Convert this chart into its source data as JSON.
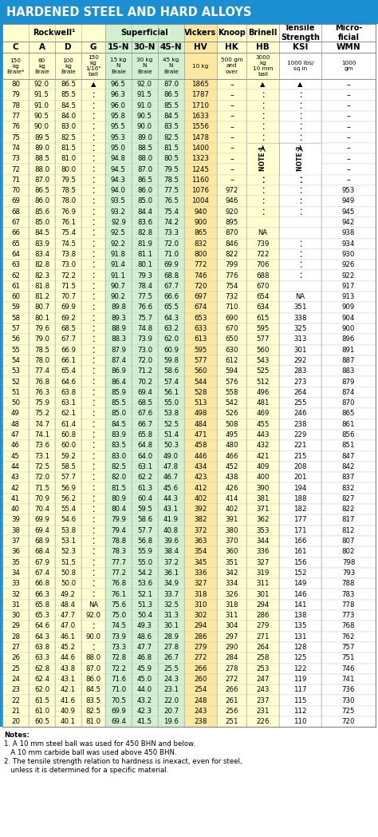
{
  "title": "HARDENED STEEL AND HARD ALLOYS",
  "header2": [
    "C",
    "A",
    "D",
    "G",
    "15-N",
    "30-N",
    "45-N",
    "HV",
    "HK",
    "HB",
    "KSI",
    "WMN"
  ],
  "subheader": [
    "150\nkg\nBrale*",
    "60\nkg\nBrale",
    "100\nkg\nBrale",
    "150\nkg\n1/16\"\nball",
    "15 kg\nN\nBrale",
    "30 kg\nN\nBrale",
    "45 kg\nN\nBrale",
    "10 kg",
    "500 gm\nand\nover",
    "3000\nkg\n10 mm\nball",
    "1000 lbs/\nsq in",
    "1000\ngm"
  ],
  "col_bg": [
    "#ffffd0",
    "#ffffd0",
    "#ffffd0",
    "#ffffd0",
    "#d0f0d0",
    "#d0f0d0",
    "#d0f0d0",
    "#fde8a0",
    "#ffffd0",
    "#ffffd0",
    "#ffffff",
    "#ffffff"
  ],
  "rows": [
    [
      "80",
      "92.0",
      "86.5",
      "A",
      "96.5",
      "92.0",
      "87.0",
      "1865",
      "-",
      "A",
      "A",
      "-"
    ],
    [
      "79",
      "91.5",
      "85.5",
      ":",
      "96.3",
      "91.5",
      "86.5",
      "1787",
      "-",
      ":",
      ":",
      "–"
    ],
    [
      "78",
      "91.0",
      "84.5",
      ":",
      "96.0",
      "91.0",
      "85.5",
      "1710",
      "-",
      ":",
      ":",
      "–"
    ],
    [
      "77",
      "90.5",
      "84.0",
      ":",
      "95.8",
      "90.5",
      "84.5",
      "1633",
      "-",
      ":",
      ":",
      "–"
    ],
    [
      "76",
      "90.0",
      "83.0",
      ":",
      "95.5",
      "90.0",
      "83.5",
      "1556",
      "-",
      ":",
      ":",
      "–"
    ],
    [
      "75",
      "89.5",
      "82.5",
      ":",
      "95.3",
      "89.0",
      "82.5",
      "1478",
      "-",
      ":",
      ":",
      "–"
    ],
    [
      "74",
      "89.0",
      "81.5",
      ":",
      "95.0",
      "88.5",
      "81.5",
      "1400",
      "-",
      "NOTE1",
      "NOTE2",
      "–"
    ],
    [
      "73",
      "88.5",
      "81.0",
      ":",
      "94.8",
      "88.0",
      "80.5",
      "1323",
      "-",
      "NOTE1",
      "NOTE2",
      "–"
    ],
    [
      "72",
      "88.0",
      "80.0",
      ":",
      "94.5",
      "87.0",
      "79.5",
      "1245",
      "-",
      "NOTE1",
      "NOTE2",
      "–"
    ],
    [
      "71",
      "87.0",
      "79.5",
      ":",
      "94.3",
      "86.5",
      "78.5",
      "1160",
      "-",
      ":",
      ":",
      "–"
    ],
    [
      "70",
      "86.5",
      "78.5",
      ":",
      "94.0",
      "86.0",
      "77.5",
      "1076",
      "972",
      ":",
      ":",
      "953"
    ],
    [
      "69",
      "86.0",
      "78.0",
      ":",
      "93.5",
      "85.0",
      "76.5",
      "1004",
      "946",
      ":",
      ":",
      "949"
    ],
    [
      "68",
      "85.6",
      "76.9",
      ":",
      "93.2",
      "84.4",
      "75.4",
      "940",
      "920",
      ":",
      ":",
      "945"
    ],
    [
      "67",
      "85.0",
      "76.1",
      ":",
      "92.9",
      "83.6",
      "74.2",
      "900",
      "895",
      "",
      "",
      "942"
    ],
    [
      "66",
      "84.5",
      "75.4",
      ":",
      "92.5",
      "82.8",
      "73.3",
      "865",
      "870",
      "NA",
      "",
      "938"
    ],
    [
      "65",
      "83.9",
      "74.5",
      ":",
      "92.2",
      "81.9",
      "72.0",
      "832",
      "846",
      "739",
      ":",
      "934"
    ],
    [
      "64",
      "83.4",
      "73.8",
      ":",
      "91.8",
      "81.1",
      "71.0",
      "800",
      "822",
      "722",
      ":",
      "930"
    ],
    [
      "63",
      "82.8",
      "73.0",
      ":",
      "91.4",
      "80.1",
      "69.9",
      "772",
      "799",
      "706",
      ":",
      "926"
    ],
    [
      "62",
      "82.3",
      "72.2",
      ":",
      "91.1",
      "79.3",
      "68.8",
      "746",
      "776",
      "688",
      ":",
      "922"
    ],
    [
      "61",
      "81.8",
      "71.5",
      ":",
      "90.7",
      "78.4",
      "67.7",
      "720",
      "754",
      "670",
      "",
      "917"
    ],
    [
      "60",
      "81.2",
      "70.7",
      ":",
      "90.2",
      "77.5",
      "66.6",
      "697",
      "732",
      "654",
      "NA",
      "913"
    ],
    [
      "59",
      "80.7",
      "69.9",
      ":",
      "89.8",
      "76.6",
      "65.5",
      "674",
      "710",
      "634",
      "351",
      "909"
    ],
    [
      "58",
      "80.1",
      "69.2",
      ":",
      "89.3",
      "75.7",
      "64.3",
      "653",
      "690",
      "615",
      "338",
      "904"
    ],
    [
      "57",
      "79.6",
      "68.5",
      ":",
      "88.9",
      "74.8",
      "63.2",
      "633",
      "670",
      "595",
      "325",
      "900"
    ],
    [
      "56",
      "79.0",
      "67.7",
      ":",
      "88.3",
      "73.9",
      "62.0",
      "613",
      "650",
      "577",
      "313",
      "896"
    ],
    [
      "55",
      "78.5",
      "66.9",
      ":",
      "87.9",
      "73.0",
      "60.9",
      "595",
      "630",
      "560",
      "301",
      "891"
    ],
    [
      "54",
      "78.0",
      "66.1",
      ":",
      "87.4",
      "72.0",
      "59.8",
      "577",
      "612",
      "543",
      "292",
      "887"
    ],
    [
      "53",
      "77.4",
      "65.4",
      ":",
      "86.9",
      "71.2",
      "58.6",
      "560",
      "594",
      "525",
      "283",
      "883"
    ],
    [
      "52",
      "76.8",
      "64.6",
      ":",
      "86.4",
      "70.2",
      "57.4",
      "544",
      "576",
      "512",
      "273",
      "879"
    ],
    [
      "51",
      "76.3",
      "63.8",
      ":",
      "85.9",
      "69.4",
      "56.1",
      "528",
      "558",
      "496",
      "264",
      "874"
    ],
    [
      "50",
      "75.9",
      "63.1",
      ":",
      "85.5",
      "68.5",
      "55.0",
      "513",
      "542",
      "481",
      "255",
      "870"
    ],
    [
      "49",
      "75.2",
      "62.1",
      ":",
      "85.0",
      "67.6",
      "53.8",
      "498",
      "526",
      "469",
      "246",
      "865"
    ],
    [
      "48",
      "74.7",
      "61.4",
      ":",
      "84.5",
      "66.7",
      "52.5",
      "484",
      "508",
      "455",
      "238",
      "861"
    ],
    [
      "47",
      "74.1",
      "60.8",
      ":",
      "83.9",
      "65.8",
      "51.4",
      "471",
      "495",
      "443",
      "229",
      "856"
    ],
    [
      "46",
      "73.6",
      "60.0",
      ":",
      "83.5",
      "64.8",
      "50.3",
      "458",
      "480",
      "432",
      "221",
      "851"
    ],
    [
      "45",
      "73.1",
      "59.2",
      ":",
      "83.0",
      "64.0",
      "49.0",
      "446",
      "466",
      "421",
      "215",
      "847"
    ],
    [
      "44",
      "72.5",
      "58.5",
      ":",
      "82.5",
      "63.1",
      "47.8",
      "434",
      "452",
      "409",
      "208",
      "842"
    ],
    [
      "43",
      "72.0",
      "57.7",
      ":",
      "82.0",
      "62.2",
      "46.7",
      "423",
      "438",
      "400",
      "201",
      "837"
    ],
    [
      "42",
      "71.5",
      "56.9",
      ":",
      "81.5",
      "61.3",
      "45.6",
      "412",
      "426",
      "390",
      "194",
      "832"
    ],
    [
      "41",
      "70.9",
      "56.2",
      ":",
      "80.9",
      "60.4",
      "44.3",
      "402",
      "414",
      "381",
      "188",
      "827"
    ],
    [
      "40",
      "70.4",
      "55.4",
      ":",
      "80.4",
      "59.5",
      "43.1",
      "392",
      "402",
      "371",
      "182",
      "822"
    ],
    [
      "39",
      "69.9",
      "54.6",
      ":",
      "79.9",
      "58.6",
      "41.9",
      "382",
      "391",
      "362",
      "177",
      "817"
    ],
    [
      "38",
      "69.4",
      "53.8",
      ":",
      "79.4",
      "57.7",
      "40.8",
      "372",
      "380",
      "353",
      "171",
      "812"
    ],
    [
      "37",
      "68.9",
      "53.1",
      ":",
      "78.8",
      "56.8",
      "39.6",
      "363",
      "370",
      "344",
      "166",
      "807"
    ],
    [
      "36",
      "68.4",
      "52.3",
      ":",
      "78.3",
      "55.9",
      "38.4",
      "354",
      "360",
      "336",
      "161",
      "802"
    ],
    [
      "35",
      "67.9",
      "51.5",
      ":",
      "77.7",
      "55.0",
      "37.2",
      "345",
      "351",
      "327",
      "156",
      "798"
    ],
    [
      "34",
      "67.4",
      "50.8",
      ":",
      "77.2",
      "54.2",
      "36.1",
      "336",
      "342",
      "319",
      "152",
      "793"
    ],
    [
      "33",
      "66.8",
      "50.0",
      ":",
      "76.8",
      "53.6",
      "34.9",
      "327",
      "334",
      "311",
      "149",
      "788"
    ],
    [
      "32",
      "66.3",
      "49.2",
      ":",
      "76.1",
      "52.1",
      "33.7",
      "318",
      "326",
      "301",
      "146",
      "783"
    ],
    [
      "31",
      "65.8",
      "48.4",
      "NA",
      "75.6",
      "51.3",
      "32.5",
      "310",
      "318",
      "294",
      "141",
      "778"
    ],
    [
      "30",
      "65.3",
      "47.7",
      "92.0",
      "75.0",
      "50.4",
      "31.3",
      "302",
      "311",
      "286",
      "138",
      "773"
    ],
    [
      "29",
      "64.6",
      "47.0",
      ":",
      "74.5",
      "49.3",
      "30.1",
      "294",
      "304",
      "279",
      "135",
      "768"
    ],
    [
      "28",
      "64.3",
      "46.1",
      "90.0",
      "73.9",
      "48.6",
      "28.9",
      "286",
      "297",
      "271",
      "131",
      "762"
    ],
    [
      "27",
      "63.8",
      "45.2",
      ":",
      "73.3",
      "47.7",
      "27.8",
      "279",
      "290",
      "264",
      "128",
      "757"
    ],
    [
      "26",
      "63.3",
      "44.6",
      "88.0",
      "72.8",
      "46.8",
      "26.7",
      "272",
      "284",
      "258",
      "125",
      "751"
    ],
    [
      "25",
      "62.8",
      "43.8",
      "87.0",
      "72.2",
      "45.9",
      "25.5",
      "266",
      "278",
      "253",
      "122",
      "746"
    ],
    [
      "24",
      "62.4",
      "43.1",
      "86.0",
      "71.6",
      "45.0",
      "24.3",
      "260",
      "272",
      "247",
      "119",
      "741"
    ],
    [
      "23",
      "62.0",
      "42.1",
      "84.5",
      "71.0",
      "44.0",
      "23.1",
      "254",
      "266",
      "243",
      "117",
      "736"
    ],
    [
      "22",
      "61.5",
      "41.6",
      "83.5",
      "70.5",
      "43.2",
      "22.0",
      "248",
      "261",
      "237",
      "115",
      "730"
    ],
    [
      "21",
      "61.0",
      "40.9",
      "82.5",
      "69.9",
      "42.3",
      "20.7",
      "243",
      "256",
      "231",
      "112",
      "725"
    ],
    [
      "20",
      "60.5",
      "40.1",
      "81.0",
      "69.4",
      "41.5",
      "19.6",
      "238",
      "251",
      "226",
      "110",
      "720"
    ]
  ],
  "notes": [
    "Notes:",
    "1. A 10 mm steel ball was used for 450 BHN and below.",
    "   A 10 mm carbide ball was used above 450 BHN.",
    "2. The tensile strength relation to hardness is inexact, even for steel,",
    "   unless it is determined for a specific material."
  ]
}
